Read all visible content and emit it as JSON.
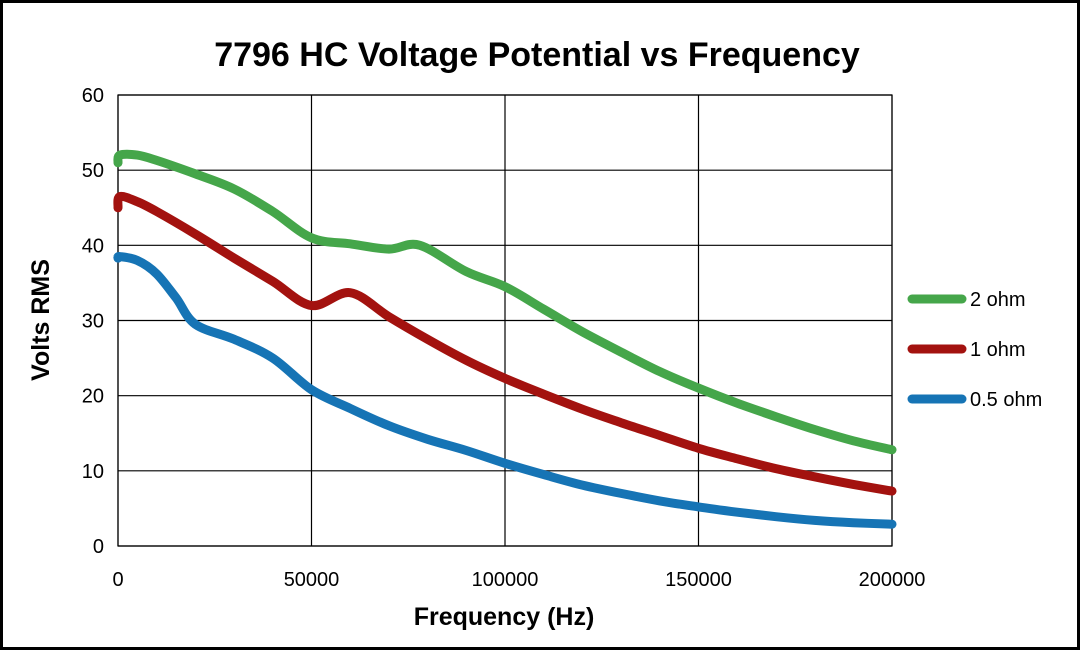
{
  "chart_data": {
    "type": "line",
    "title": "7796 HC  Voltage Potential vs Frequency",
    "xlabel": "Frequency (Hz)",
    "ylabel": "Volts  RMS",
    "xlim": [
      0,
      200000
    ],
    "ylim": [
      0,
      60
    ],
    "xticks": [
      0,
      50000,
      100000,
      150000,
      200000
    ],
    "yticks": [
      0,
      10,
      20,
      30,
      40,
      50,
      60
    ],
    "grid": true,
    "legend_position": "right",
    "series": [
      {
        "name": "2 ohm",
        "color": "#45A64A",
        "points": [
          [
            0,
            51
          ],
          [
            500,
            52
          ],
          [
            5000,
            52
          ],
          [
            10000,
            51.3
          ],
          [
            20000,
            49.5
          ],
          [
            30000,
            47.5
          ],
          [
            40000,
            44.5
          ],
          [
            50000,
            41
          ],
          [
            60000,
            40.2
          ],
          [
            70000,
            39.5
          ],
          [
            78000,
            40
          ],
          [
            90000,
            36.5
          ],
          [
            100000,
            34.5
          ],
          [
            110000,
            31.5
          ],
          [
            120000,
            28.5
          ],
          [
            130000,
            25.8
          ],
          [
            140000,
            23.2
          ],
          [
            150000,
            21
          ],
          [
            160000,
            19
          ],
          [
            170000,
            17.2
          ],
          [
            180000,
            15.5
          ],
          [
            190000,
            14
          ],
          [
            200000,
            12.8
          ]
        ]
      },
      {
        "name": "1 ohm",
        "color": "#A3120F",
        "points": [
          [
            0,
            45
          ],
          [
            500,
            46.5
          ],
          [
            5000,
            45.8
          ],
          [
            10000,
            44.5
          ],
          [
            20000,
            41.5
          ],
          [
            30000,
            38.3
          ],
          [
            40000,
            35.2
          ],
          [
            50000,
            32
          ],
          [
            60000,
            33.7
          ],
          [
            70000,
            30.5
          ],
          [
            80000,
            27.5
          ],
          [
            90000,
            24.7
          ],
          [
            100000,
            22.3
          ],
          [
            110000,
            20.2
          ],
          [
            120000,
            18.2
          ],
          [
            130000,
            16.4
          ],
          [
            140000,
            14.7
          ],
          [
            150000,
            13
          ],
          [
            160000,
            11.6
          ],
          [
            170000,
            10.3
          ],
          [
            180000,
            9.2
          ],
          [
            190000,
            8.2
          ],
          [
            200000,
            7.3
          ]
        ]
      },
      {
        "name": "0.5 ohm",
        "color": "#1674B5",
        "points": [
          [
            0,
            38.3
          ],
          [
            500,
            38.5
          ],
          [
            5000,
            38
          ],
          [
            10000,
            36.2
          ],
          [
            15000,
            33
          ],
          [
            20000,
            29.5
          ],
          [
            30000,
            27.5
          ],
          [
            40000,
            25
          ],
          [
            50000,
            20.8
          ],
          [
            60000,
            18.3
          ],
          [
            70000,
            16
          ],
          [
            80000,
            14.2
          ],
          [
            90000,
            12.7
          ],
          [
            100000,
            11
          ],
          [
            110000,
            9.5
          ],
          [
            120000,
            8.1
          ],
          [
            130000,
            7
          ],
          [
            140000,
            6
          ],
          [
            150000,
            5.2
          ],
          [
            160000,
            4.5
          ],
          [
            170000,
            3.9
          ],
          [
            180000,
            3.4
          ],
          [
            190000,
            3.1
          ],
          [
            200000,
            2.9
          ]
        ]
      }
    ]
  }
}
